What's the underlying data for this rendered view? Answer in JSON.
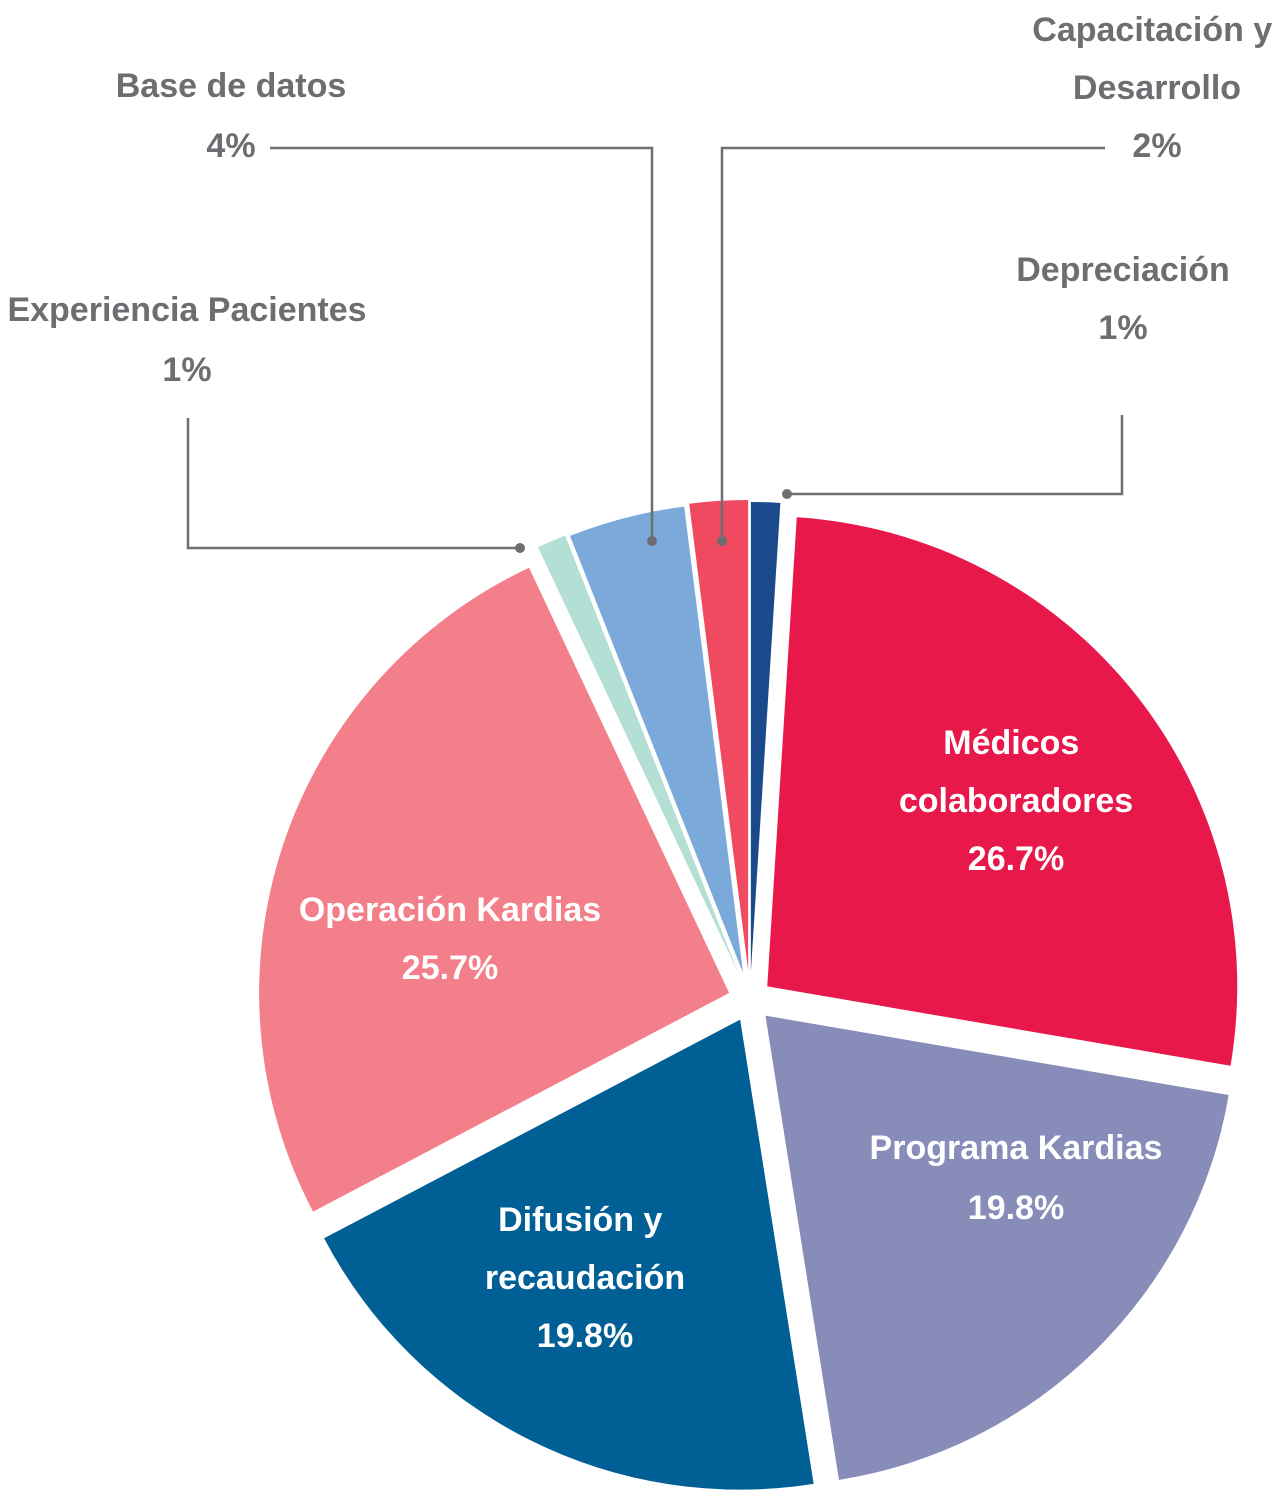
{
  "chart_data": {
    "type": "pie",
    "categories": [
      "Depreciación",
      "Médicos colaboradores",
      "Programa Kardias",
      "Difusión y recaudación",
      "Operación Kardias",
      "Experiencia Pacientes",
      "Base de datos",
      "Capacitación y Desarrollo"
    ],
    "values": [
      1,
      26.7,
      19.8,
      19.8,
      25.7,
      1,
      4,
      2
    ],
    "value_labels": [
      "1%",
      "26.7%",
      "19.8%",
      "19.8%",
      "25.7%",
      "1%",
      "4%",
      "2%"
    ],
    "colors": [
      "#1b4a8c",
      "#e8194a",
      "#878cb9",
      "#005f94",
      "#f27f8a",
      "#b3dfd5",
      "#7aa9da",
      "#ef4a5f"
    ]
  }
}
